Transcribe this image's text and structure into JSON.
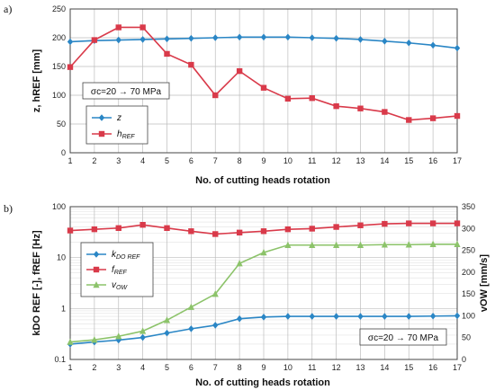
{
  "colors": {
    "blue": "#2a86c5",
    "red": "#d93a4a",
    "green": "#8cc36a"
  },
  "chart_data": [
    {
      "panel_label": "a)",
      "type": "line",
      "x": [
        1,
        2,
        3,
        4,
        5,
        6,
        7,
        8,
        9,
        10,
        11,
        12,
        13,
        14,
        15,
        16,
        17
      ],
      "xlabel": "No. of cutting heads rotation",
      "ylabel": "z, hREF [mm]",
      "ylim": [
        0,
        250
      ],
      "yticks": [
        0,
        50,
        100,
        150,
        200,
        250
      ],
      "grid": true,
      "annotation": "σc=20 → 70 MPa",
      "legend_position": "left",
      "series": [
        {
          "name": "z",
          "marker": "diamond",
          "color": "#2a86c5",
          "values": [
            193,
            195,
            196,
            197,
            198,
            199,
            200,
            201,
            201,
            201,
            200,
            199,
            197,
            194,
            191,
            187,
            182
          ]
        },
        {
          "name": "hREF",
          "marker": "square",
          "color": "#d93a4a",
          "values": [
            149,
            196,
            218,
            218,
            172,
            153,
            100,
            142,
            113,
            94,
            95,
            81,
            77,
            71,
            57,
            60,
            64
          ]
        }
      ]
    },
    {
      "panel_label": "b)",
      "type": "line",
      "x": [
        1,
        2,
        3,
        4,
        5,
        6,
        7,
        8,
        9,
        10,
        11,
        12,
        13,
        14,
        15,
        16,
        17
      ],
      "xlabel": "No. of cutting heads rotation",
      "ylabel_left": "kDO REF [-], fREF [Hz]",
      "ylabel_right": "vOW [mm/s]",
      "ylim_left": [
        0.1,
        100
      ],
      "yscale_left": "log",
      "yticks_left": [
        "0.1",
        "1",
        "10",
        "100"
      ],
      "ylim_right": [
        0,
        350
      ],
      "yticks_right": [
        0,
        50,
        100,
        150,
        200,
        250,
        300,
        350
      ],
      "grid": true,
      "annotation": "σc=20 → 70 MPa",
      "legend_position": "left",
      "series": [
        {
          "name": "kDO REF",
          "marker": "diamond",
          "color": "#2a86c5",
          "axis": "left",
          "values": [
            0.2,
            0.22,
            0.24,
            0.27,
            0.33,
            0.4,
            0.47,
            0.63,
            0.68,
            0.7,
            0.7,
            0.7,
            0.7,
            0.7,
            0.7,
            0.71,
            0.72
          ]
        },
        {
          "name": "fREF",
          "marker": "square",
          "color": "#d93a4a",
          "axis": "left",
          "values": [
            34,
            36,
            38,
            44,
            38,
            33,
            29,
            31,
            33,
            36,
            37,
            40,
            43,
            46,
            47,
            47,
            47
          ]
        },
        {
          "name": "vOW",
          "marker": "triangle",
          "color": "#8cc36a",
          "axis": "right",
          "values": [
            40,
            45,
            53,
            65,
            90,
            120,
            150,
            220,
            245,
            262,
            262,
            262,
            262,
            263,
            263,
            264,
            264
          ]
        }
      ]
    }
  ]
}
